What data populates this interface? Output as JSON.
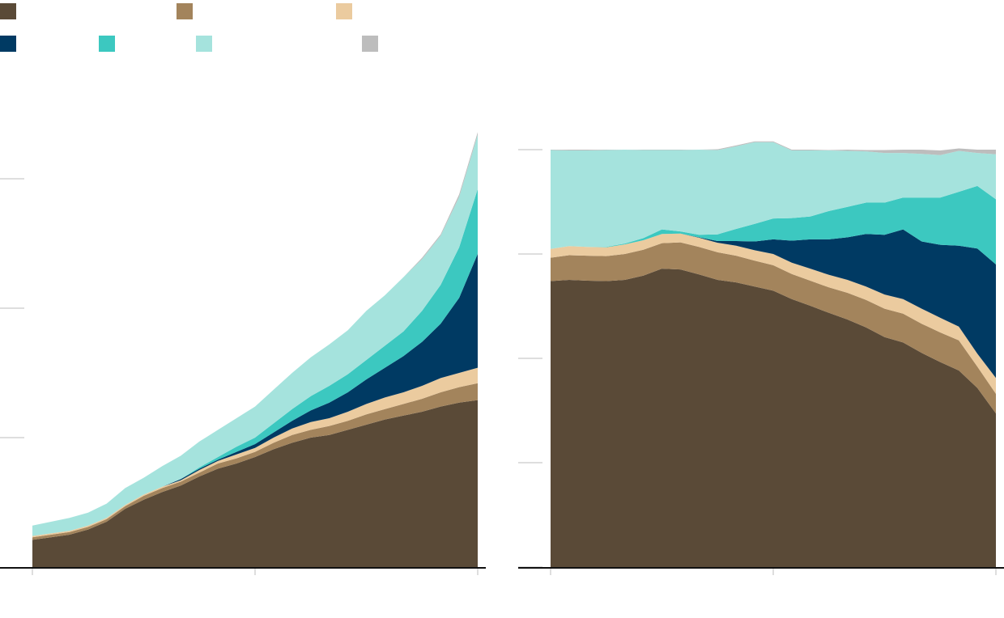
{
  "legend": [
    {
      "key": "s1",
      "label": "",
      "color": "#5a4a37"
    },
    {
      "key": "s2",
      "label": "",
      "color": "#a3845c"
    },
    {
      "key": "s3",
      "label": "",
      "color": "#ebcb9f"
    },
    {
      "key": "s4",
      "label": "",
      "color": "#003a63"
    },
    {
      "key": "s5",
      "label": "",
      "color": "#3cc8c0"
    },
    {
      "key": "s6",
      "label": "",
      "color": "#a5e3dd"
    },
    {
      "key": "s7",
      "label": "",
      "color": "#bdbdbd"
    }
  ],
  "chart_data": [
    {
      "type": "area",
      "stacked": true,
      "title": "",
      "xlabel": "",
      "ylabel": "",
      "x": [
        0,
        1,
        2,
        3,
        4,
        5,
        6,
        7,
        8,
        9,
        10,
        11,
        12,
        13,
        14,
        15,
        16,
        17,
        18,
        19,
        20,
        21,
        22,
        23,
        24
      ],
      "ylim": [
        0,
        3.35
      ],
      "yticks": [
        1,
        2,
        3
      ],
      "xticks": [
        0,
        12,
        24
      ],
      "grid": false,
      "series": [
        {
          "key": "s1",
          "values": [
            0.21,
            0.23,
            0.25,
            0.29,
            0.35,
            0.45,
            0.52,
            0.58,
            0.63,
            0.7,
            0.76,
            0.8,
            0.85,
            0.91,
            0.96,
            1.0,
            1.02,
            1.06,
            1.1,
            1.14,
            1.17,
            1.2,
            1.24,
            1.27,
            1.29
          ]
        },
        {
          "key": "s2",
          "values": [
            0.02,
            0.02,
            0.02,
            0.02,
            0.02,
            0.02,
            0.03,
            0.03,
            0.03,
            0.03,
            0.04,
            0.04,
            0.04,
            0.05,
            0.06,
            0.06,
            0.07,
            0.07,
            0.08,
            0.08,
            0.09,
            0.1,
            0.11,
            0.12,
            0.13
          ]
        },
        {
          "key": "s3",
          "values": [
            0.01,
            0.01,
            0.01,
            0.01,
            0.01,
            0.01,
            0.01,
            0.01,
            0.01,
            0.02,
            0.02,
            0.03,
            0.03,
            0.04,
            0.05,
            0.06,
            0.06,
            0.07,
            0.08,
            0.09,
            0.09,
            0.1,
            0.11,
            0.11,
            0.12
          ]
        },
        {
          "key": "s4",
          "values": [
            0,
            0,
            0,
            0,
            0,
            0,
            0,
            0,
            0.01,
            0.01,
            0.01,
            0.02,
            0.03,
            0.04,
            0.06,
            0.09,
            0.12,
            0.15,
            0.19,
            0.23,
            0.28,
            0.34,
            0.42,
            0.58,
            0.88
          ]
        },
        {
          "key": "s5",
          "values": [
            0,
            0,
            0,
            0,
            0,
            0,
            0,
            0,
            0,
            0.01,
            0.02,
            0.04,
            0.05,
            0.07,
            0.09,
            0.11,
            0.13,
            0.14,
            0.15,
            0.17,
            0.19,
            0.24,
            0.3,
            0.39,
            0.5
          ]
        },
        {
          "key": "s6",
          "values": [
            0.08,
            0.09,
            0.1,
            0.1,
            0.11,
            0.13,
            0.13,
            0.16,
            0.18,
            0.2,
            0.21,
            0.22,
            0.24,
            0.26,
            0.28,
            0.3,
            0.32,
            0.34,
            0.38,
            0.39,
            0.42,
            0.4,
            0.38,
            0.39,
            0.42
          ]
        },
        {
          "key": "s7",
          "values": [
            0,
            0,
            0,
            0,
            0,
            0,
            0,
            0,
            0,
            0,
            0,
            0,
            0,
            0,
            0,
            0,
            0,
            0,
            0,
            0,
            0,
            0.01,
            0.01,
            0.02,
            0.02
          ]
        }
      ]
    },
    {
      "type": "area",
      "stacked": true,
      "normalized": true,
      "title": "",
      "xlabel": "",
      "ylabel": "",
      "x": [
        0,
        1,
        2,
        3,
        4,
        5,
        6,
        7,
        8,
        9,
        10,
        11,
        12,
        13,
        14,
        15,
        16,
        17,
        18,
        19,
        20,
        21,
        22,
        23,
        24
      ],
      "ylim": [
        0,
        100
      ],
      "yticks": [
        0,
        25,
        50,
        75,
        100
      ],
      "xticks": [
        0,
        12,
        24
      ],
      "grid": false,
      "series": [
        {
          "key": "s1",
          "values": [
            68.5,
            68.8,
            68.6,
            68.5,
            68.8,
            69.8,
            71.5,
            71.3,
            70.1,
            68.8,
            68.2,
            67.2,
            66.2,
            64.2,
            62.6,
            60.9,
            59.3,
            57.4,
            55.1,
            53.8,
            51.3,
            49.1,
            47.1,
            42.9,
            36.8
          ]
        },
        {
          "key": "s2",
          "values": [
            5.6,
            5.9,
            6.0,
            6.0,
            6.2,
            6.2,
            6.1,
            6.5,
            6.6,
            6.6,
            6.4,
            6.2,
            6.1,
            6.0,
            6.0,
            6.1,
            6.4,
            6.6,
            6.8,
            6.9,
            7.0,
            7.1,
            7.2,
            5.1,
            4.7
          ]
        },
        {
          "key": "s3",
          "values": [
            2.1,
            2.2,
            2.1,
            2.1,
            2.3,
            2.3,
            2.2,
            2.1,
            2.2,
            2.3,
            2.4,
            2.5,
            2.7,
            2.7,
            2.9,
            3.0,
            3.1,
            3.2,
            3.4,
            3.5,
            3.6,
            3.5,
            3.3,
            3.1,
            3.8
          ]
        },
        {
          "key": "s4",
          "values": [
            0,
            0,
            0,
            0,
            0,
            0,
            0,
            0,
            0.1,
            0.4,
            1.1,
            2.1,
            3.5,
            5.3,
            7.0,
            8.5,
            10.2,
            12.6,
            14.3,
            16.7,
            16.1,
            17.5,
            19.4,
            25.2,
            27.2
          ]
        },
        {
          "key": "s5",
          "values": [
            0,
            0,
            0,
            0.1,
            0.2,
            0.5,
            1.1,
            0.5,
            0.6,
            1.6,
            2.9,
            4.2,
            5.0,
            5.4,
            5.5,
            6.8,
            7.3,
            7.5,
            7.7,
            7.6,
            10.5,
            11.3,
            12.9,
            15.0,
            15.6
          ]
        },
        {
          "key": "s6",
          "values": [
            23.7,
            22.9,
            23.1,
            23.2,
            22.5,
            21.1,
            19.0,
            19.5,
            20.4,
            20.2,
            19.8,
            19.6,
            18.3,
            16.2,
            15.8,
            14.5,
            13.4,
            12.3,
            11.9,
            10.7,
            10.5,
            10.2,
            9.8,
            7.9,
            10.8
          ]
        },
        {
          "key": "s7",
          "values": [
            0.1,
            0.2,
            0.2,
            0.1,
            0,
            0.1,
            0.1,
            0.1,
            0,
            0.2,
            0.2,
            0.2,
            0.2,
            0.2,
            0.2,
            0.1,
            0.3,
            0.3,
            0.7,
            0.8,
            1.0,
            1.1,
            0.6,
            0.8,
            1.1
          ]
        }
      ]
    }
  ]
}
